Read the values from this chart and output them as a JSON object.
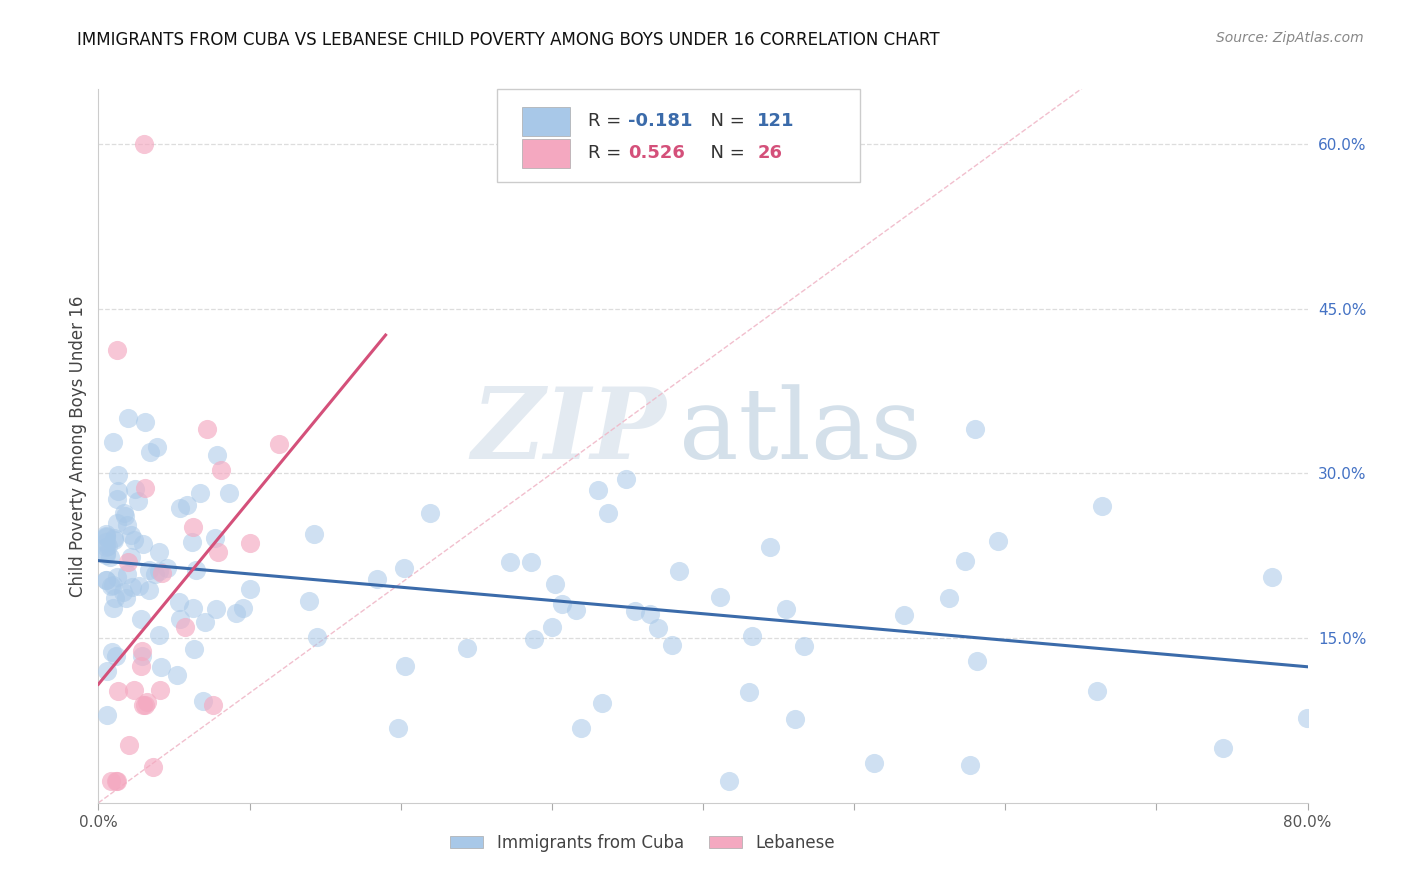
{
  "title": "IMMIGRANTS FROM CUBA VS LEBANESE CHILD POVERTY AMONG BOYS UNDER 16 CORRELATION CHART",
  "source": "Source: ZipAtlas.com",
  "ylabel": "Child Poverty Among Boys Under 16",
  "watermark_zip": "ZIP",
  "watermark_atlas": "atlas",
  "xlim": [
    0.0,
    0.8
  ],
  "ylim": [
    0.0,
    0.65
  ],
  "xtick_vals": [
    0.0,
    0.1,
    0.2,
    0.3,
    0.4,
    0.5,
    0.6,
    0.7,
    0.8
  ],
  "xtick_labels": [
    "0.0%",
    "",
    "",
    "",
    "",
    "",
    "",
    "",
    "80.0%"
  ],
  "ytick_right_vals": [
    0.15,
    0.3,
    0.45,
    0.6
  ],
  "ytick_right_labels": [
    "15.0%",
    "30.0%",
    "45.0%",
    "60.0%"
  ],
  "legend1_label": "Immigrants from Cuba",
  "legend2_label": "Lebanese",
  "r1": -0.181,
  "n1": 121,
  "r2": 0.526,
  "n2": 26,
  "color_cuba": "#A8C8E8",
  "color_lebanese": "#F4A8C0",
  "color_trendline_cuba": "#3B6BAA",
  "color_trendline_lebanese": "#D4507A",
  "color_diag": "#F0B8C8",
  "bg_color": "#FFFFFF",
  "grid_color": "#DDDDDD",
  "title_fontsize": 12,
  "source_fontsize": 10,
  "ylabel_fontsize": 12
}
